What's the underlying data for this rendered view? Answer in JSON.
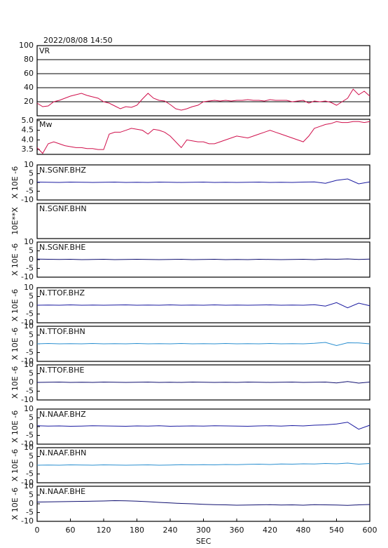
{
  "chart_data": [
    {
      "type": "line",
      "title": "2022/08/08 14:50",
      "ylim": [
        0,
        100
      ],
      "yticks": [
        20,
        40,
        60,
        80,
        100
      ],
      "grid": true,
      "x": [
        0,
        10,
        20,
        30,
        40,
        50,
        60,
        70,
        80,
        90,
        100,
        110,
        120,
        130,
        140,
        150,
        160,
        170,
        180,
        190,
        200,
        210,
        220,
        230,
        240,
        250,
        260,
        270,
        280,
        290,
        300,
        310,
        320,
        330,
        340,
        350,
        360,
        370,
        380,
        390,
        400,
        410,
        420,
        430,
        440,
        450,
        460,
        470,
        480,
        490,
        500,
        510,
        520,
        530,
        540,
        550,
        560,
        570,
        580,
        590,
        600
      ],
      "series": [
        {
          "name": "VR",
          "color": "#d0104c",
          "values": [
            18,
            13,
            14,
            20,
            22,
            25,
            28,
            30,
            32,
            29,
            27,
            25,
            20,
            18,
            14,
            10,
            13,
            12,
            15,
            24,
            32,
            25,
            22,
            21,
            16,
            10,
            8,
            10,
            13,
            15,
            20,
            21,
            22,
            21,
            22,
            21,
            22,
            22,
            23,
            22,
            22,
            21,
            23,
            22,
            22,
            22,
            20,
            21,
            22,
            18,
            21,
            20,
            21,
            19,
            15,
            20,
            25,
            38,
            30,
            35,
            28
          ]
        }
      ]
    },
    {
      "type": "line",
      "ylim": [
        3.25,
        5.07
      ],
      "yticks": [
        {
          "value": 3.5,
          "label": "3.5"
        },
        {
          "value": 4,
          "label": "4.0"
        },
        {
          "value": 4.5,
          "label": "4.5"
        },
        {
          "value": 5,
          "label": "5.0"
        }
      ],
      "grid": false,
      "x": [
        0,
        10,
        20,
        30,
        40,
        50,
        60,
        70,
        80,
        90,
        100,
        110,
        120,
        130,
        140,
        150,
        160,
        170,
        180,
        190,
        200,
        210,
        220,
        230,
        240,
        250,
        260,
        270,
        280,
        290,
        300,
        310,
        320,
        330,
        340,
        350,
        360,
        370,
        380,
        390,
        400,
        410,
        420,
        430,
        440,
        450,
        460,
        470,
        480,
        490,
        500,
        510,
        520,
        530,
        540,
        550,
        560,
        570,
        580,
        590,
        600
      ],
      "series": [
        {
          "name": "Mw",
          "color": "#d0104c",
          "values": [
            3.6,
            3.3,
            3.8,
            3.9,
            3.8,
            3.7,
            3.65,
            3.6,
            3.6,
            3.55,
            3.55,
            3.5,
            3.5,
            4.3,
            4.4,
            4.4,
            4.5,
            4.6,
            4.55,
            4.5,
            4.3,
            4.55,
            4.5,
            4.4,
            4.2,
            3.9,
            3.6,
            4.0,
            3.95,
            3.9,
            3.9,
            3.8,
            3.8,
            3.9,
            4.0,
            4.1,
            4.2,
            4.15,
            4.1,
            4.2,
            4.3,
            4.4,
            4.5,
            4.4,
            4.3,
            4.2,
            4.1,
            4.0,
            3.9,
            4.2,
            4.6,
            4.7,
            4.8,
            4.85,
            4.95,
            4.9,
            4.9,
            4.95,
            4.95,
            4.9,
            4.95
          ]
        }
      ]
    },
    {
      "type": "line",
      "ylabel": "X 10E -6",
      "ylim": [
        -10,
        10
      ],
      "yticks": [
        -10,
        -5,
        0,
        5,
        10
      ],
      "grid": false,
      "x": [
        0,
        20,
        40,
        60,
        80,
        100,
        120,
        140,
        160,
        180,
        200,
        220,
        240,
        260,
        280,
        300,
        320,
        340,
        360,
        380,
        400,
        420,
        440,
        460,
        480,
        500,
        520,
        540,
        560,
        580,
        600
      ],
      "series": [
        {
          "name": "N.SGNF.BHZ",
          "color": "#1a1aa0",
          "values": [
            0.2,
            0.1,
            0,
            0.2,
            0.1,
            0,
            0.1,
            0.2,
            0,
            0.1,
            0,
            0.2,
            0.1,
            0,
            0.1,
            0.2,
            0,
            0.1,
            0,
            0.1,
            0.2,
            0,
            0.1,
            0,
            0.2,
            0.3,
            -0.5,
            1.2,
            2,
            -0.8,
            0.3
          ]
        }
      ]
    },
    {
      "type": "line",
      "ylabel": "10E**X",
      "ylim": [
        -10,
        10
      ],
      "yticks": [],
      "grid": false,
      "x": [],
      "series": [
        {
          "name": "N.SGNF.BHN",
          "color": "#2a8fd0",
          "values": []
        }
      ]
    },
    {
      "type": "line",
      "ylabel": "X 10E -6",
      "ylim": [
        -10,
        10
      ],
      "yticks": [
        -10,
        -5,
        0,
        5,
        10
      ],
      "grid": false,
      "x": [
        0,
        20,
        40,
        60,
        80,
        100,
        120,
        140,
        160,
        180,
        200,
        220,
        240,
        260,
        280,
        300,
        320,
        340,
        360,
        380,
        400,
        420,
        440,
        460,
        480,
        500,
        520,
        540,
        560,
        580,
        600
      ],
      "series": [
        {
          "name": "N.SGNF.BHE",
          "color": "#101070",
          "values": [
            0.3,
            0.2,
            0.1,
            0.2,
            0,
            0.1,
            0.2,
            0,
            0.1,
            0.2,
            0.1,
            0,
            0.1,
            0.2,
            0,
            0.1,
            0.2,
            0,
            0.1,
            0,
            0.2,
            0.1,
            0,
            0.1,
            0.2,
            0,
            0.3,
            0.2,
            0.4,
            0.1,
            0.3
          ]
        }
      ]
    },
    {
      "type": "line",
      "ylabel": "X 10E -6",
      "ylim": [
        -10,
        10
      ],
      "yticks": [
        -10,
        -5,
        0,
        5,
        10
      ],
      "grid": false,
      "x": [
        0,
        20,
        40,
        60,
        80,
        100,
        120,
        140,
        160,
        180,
        200,
        220,
        240,
        260,
        280,
        300,
        320,
        340,
        360,
        380,
        400,
        420,
        440,
        460,
        480,
        500,
        520,
        540,
        560,
        580,
        600
      ],
      "series": [
        {
          "name": "N.TTOF.BHZ",
          "color": "#1a1aa0",
          "values": [
            0,
            0.1,
            0,
            0.2,
            0,
            0.1,
            0,
            0.1,
            0.2,
            0,
            0.1,
            0,
            0.2,
            0,
            0.1,
            0,
            0.2,
            0,
            0.1,
            0,
            0.1,
            0.2,
            0,
            0.1,
            0,
            0.3,
            -0.5,
            1.5,
            -1.5,
            1.2,
            -0.3
          ]
        }
      ]
    },
    {
      "type": "line",
      "ylabel": "X 10E -6",
      "ylim": [
        -10,
        10
      ],
      "yticks": [
        -10,
        -5,
        0,
        5,
        10
      ],
      "grid": false,
      "x": [
        0,
        20,
        40,
        60,
        80,
        100,
        120,
        140,
        160,
        180,
        200,
        220,
        240,
        260,
        280,
        300,
        320,
        340,
        360,
        380,
        400,
        420,
        440,
        460,
        480,
        500,
        520,
        540,
        560,
        580,
        600
      ],
      "series": [
        {
          "name": "N.TTOF.BHN",
          "color": "#2a8fd0",
          "values": [
            0,
            0.2,
            0,
            0.1,
            0,
            0.2,
            0,
            0.1,
            0,
            0.2,
            0,
            0.1,
            0,
            0.2,
            0,
            0.1,
            0,
            0.2,
            0,
            0.1,
            0,
            0.2,
            0,
            0.1,
            0,
            0.3,
            0.8,
            -1,
            0.6,
            0.5,
            0
          ]
        }
      ]
    },
    {
      "type": "line",
      "ylabel": "X 10E -6",
      "ylim": [
        -10,
        10
      ],
      "yticks": [
        -10,
        -5,
        0,
        5,
        10
      ],
      "grid": false,
      "x": [
        0,
        20,
        40,
        60,
        80,
        100,
        120,
        140,
        160,
        180,
        200,
        220,
        240,
        260,
        280,
        300,
        320,
        340,
        360,
        380,
        400,
        420,
        440,
        460,
        480,
        500,
        520,
        540,
        560,
        580,
        600
      ],
      "series": [
        {
          "name": "N.TTOF.BHE",
          "color": "#101070",
          "values": [
            0,
            0.1,
            0.2,
            0,
            0.1,
            0,
            0.2,
            0.1,
            0,
            0.1,
            0.2,
            0,
            0.1,
            0,
            0.2,
            0.1,
            0,
            0.1,
            0,
            0.2,
            0.1,
            0,
            0.1,
            0.2,
            0,
            0.1,
            0.2,
            -0.3,
            0.5,
            -0.4,
            0.2
          ]
        }
      ]
    },
    {
      "type": "line",
      "ylabel": "X 10E -6",
      "ylim": [
        -10,
        10
      ],
      "yticks": [
        -10,
        -5,
        0,
        5,
        10
      ],
      "grid": false,
      "x": [
        0,
        20,
        40,
        60,
        80,
        100,
        120,
        140,
        160,
        180,
        200,
        220,
        240,
        260,
        280,
        300,
        320,
        340,
        360,
        380,
        400,
        420,
        440,
        460,
        480,
        500,
        520,
        540,
        560,
        580,
        600
      ],
      "series": [
        {
          "name": "N.NAAF.BHZ",
          "color": "#1a1aa0",
          "values": [
            0.5,
            0.3,
            0.4,
            0.2,
            0.3,
            0.5,
            0.4,
            0.3,
            0.2,
            0.4,
            0.3,
            0.5,
            0.2,
            0.3,
            0.4,
            0.3,
            0.5,
            0.4,
            0.3,
            0.2,
            0.4,
            0.5,
            0.3,
            0.6,
            0.4,
            0.8,
            1,
            1.5,
            2.5,
            -1.5,
            0.8
          ]
        }
      ]
    },
    {
      "type": "line",
      "ylabel": "X 10E -6",
      "ylim": [
        -10,
        10
      ],
      "yticks": [
        -10,
        -5,
        0,
        5,
        10
      ],
      "grid": false,
      "x": [
        0,
        20,
        40,
        60,
        80,
        100,
        120,
        140,
        160,
        180,
        200,
        220,
        240,
        260,
        280,
        300,
        320,
        340,
        360,
        380,
        400,
        420,
        440,
        460,
        480,
        500,
        520,
        540,
        560,
        580,
        600
      ],
      "series": [
        {
          "name": "N.NAAF.BHN",
          "color": "#2a8fd0",
          "values": [
            0,
            0.1,
            0,
            0.2,
            0.1,
            0,
            0.2,
            0.1,
            0,
            0.1,
            0.2,
            0,
            0.1,
            0.3,
            0.2,
            0.3,
            0.2,
            0.4,
            0.3,
            0.5,
            0.6,
            0.4,
            0.7,
            0.6,
            0.8,
            0.7,
            1,
            0.8,
            1.2,
            0.6,
            1
          ]
        }
      ]
    },
    {
      "type": "line",
      "ylabel": "X 10E -6",
      "ylim": [
        -10,
        10
      ],
      "yticks": [
        -10,
        -5,
        0,
        5,
        10
      ],
      "grid": false,
      "xlabel": "SEC",
      "xticks": [
        0,
        60,
        120,
        180,
        240,
        300,
        360,
        420,
        480,
        540,
        600
      ],
      "x": [
        0,
        20,
        40,
        60,
        80,
        100,
        120,
        140,
        160,
        180,
        200,
        220,
        240,
        260,
        280,
        300,
        320,
        340,
        360,
        380,
        400,
        420,
        440,
        460,
        480,
        500,
        520,
        540,
        560,
        580,
        600
      ],
      "series": [
        {
          "name": "N.NAAF.BHE",
          "color": "#101070",
          "values": [
            1,
            1.1,
            1.2,
            1.3,
            1.4,
            1.5,
            1.6,
            1.8,
            1.7,
            1.5,
            1.2,
            0.8,
            0.5,
            0.2,
            0,
            -0.3,
            -0.5,
            -0.6,
            -0.8,
            -0.7,
            -0.6,
            -0.5,
            -0.7,
            -0.6,
            -0.8,
            -0.5,
            -0.6,
            -0.7,
            -0.9,
            -0.6,
            -0.4
          ]
        }
      ]
    }
  ]
}
